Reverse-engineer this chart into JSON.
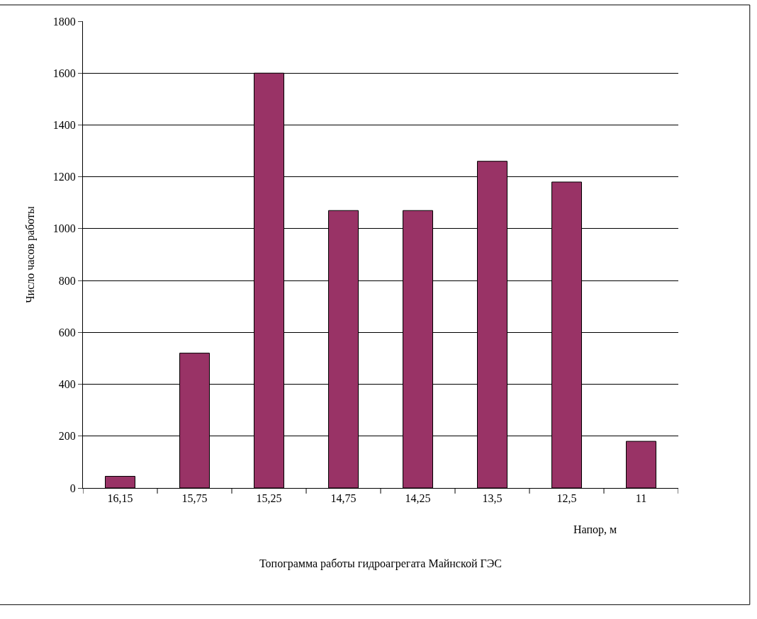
{
  "chart_data": {
    "type": "bar",
    "title": "Топограмма работы гидроагрегата Майнской ГЭС",
    "xlabel": "Напор, м",
    "ylabel": "Число часов работы",
    "categories": [
      "16,15",
      "15,75",
      "15,25",
      "14,75",
      "14,25",
      "13,5",
      "12,5",
      "11"
    ],
    "values": [
      45,
      520,
      1600,
      1070,
      1070,
      1260,
      1180,
      180
    ],
    "color": "#993366",
    "ylim": [
      0,
      1800
    ],
    "yticks": [
      0,
      200,
      400,
      600,
      800,
      1000,
      1200,
      1400,
      1600,
      1800
    ],
    "grid": "y",
    "legend": false
  }
}
